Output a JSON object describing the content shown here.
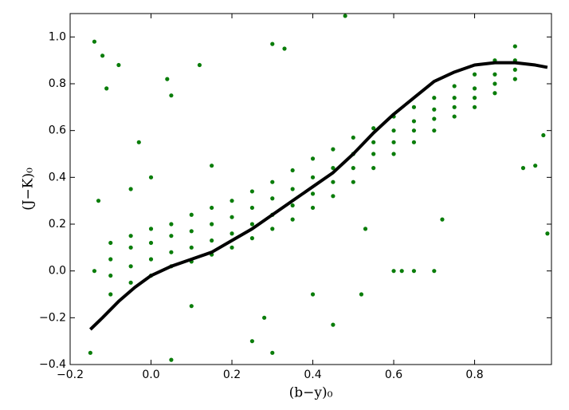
{
  "chart_data": {
    "type": "scatter",
    "xlabel": "(b−y)₀",
    "ylabel": "(J−K)₀",
    "xlim": [
      -0.2,
      0.99
    ],
    "ylim": [
      -0.4,
      1.1
    ],
    "xticks": [
      {
        "value": -0.2,
        "label": "−0.2"
      },
      {
        "value": 0,
        "label": "0.0"
      },
      {
        "value": 0.2,
        "label": "0.2"
      },
      {
        "value": 0.4,
        "label": "0.4"
      },
      {
        "value": 0.6,
        "label": "0.6"
      },
      {
        "value": 0.8,
        "label": "0.8"
      }
    ],
    "yticks": [
      {
        "value": -0.4,
        "label": "−0.4"
      },
      {
        "value": -0.2,
        "label": "−0.2"
      },
      {
        "value": 0,
        "label": "0.0"
      },
      {
        "value": 0.2,
        "label": "0.2"
      },
      {
        "value": 0.4,
        "label": "0.4"
      },
      {
        "value": 0.6,
        "label": "0.6"
      },
      {
        "value": 0.8,
        "label": "0.8"
      },
      {
        "value": 1,
        "label": "1.0"
      }
    ],
    "series": [
      {
        "color": "#0a7d0a",
        "x": [
          -0.1,
          -0.1,
          -0.1,
          -0.1,
          -0.05,
          -0.05,
          -0.05,
          -0.05,
          0,
          0,
          0,
          0,
          0.05,
          0.05,
          0.05,
          0.05,
          0.1,
          0.1,
          0.1,
          0.1,
          0.15,
          0.15,
          0.15,
          0.15,
          0.2,
          0.2,
          0.2,
          0.2,
          0.25,
          0.25,
          0.25,
          0.25,
          0.3,
          0.3,
          0.3,
          0.3,
          0.35,
          0.35,
          0.35,
          0.35,
          0.4,
          0.4,
          0.4,
          0.4,
          0.45,
          0.45,
          0.45,
          0.45,
          0.5,
          0.5,
          0.5,
          0.5,
          0.55,
          0.55,
          0.55,
          0.55,
          0.6,
          0.6,
          0.6,
          0.6,
          0.65,
          0.65,
          0.65,
          0.65,
          0.7,
          0.7,
          0.7,
          0.7,
          0.75,
          0.75,
          0.75,
          0.75,
          0.8,
          0.8,
          0.8,
          0.8,
          0.85,
          0.85,
          0.85,
          0.85,
          0.9,
          0.9,
          0.9,
          0.9,
          -0.14,
          -0.12,
          -0.11,
          -0.08,
          -0.03,
          0.04,
          0.05,
          0.12,
          0.3,
          0.33,
          0.48,
          0.7,
          0.65,
          0.62,
          0.6,
          0.95,
          0.92,
          0.98,
          0.97,
          0.53,
          0.72,
          0.25,
          0.3,
          0.28,
          0.05,
          -0.15,
          -0.14,
          0.1,
          0.45,
          0.4,
          0.52,
          -0.05,
          0,
          -0.13,
          0.15
        ],
        "y": [
          0.05,
          -0.02,
          -0.1,
          0.12,
          0.1,
          0.02,
          -0.05,
          0.15,
          0.12,
          0.05,
          -0.02,
          0.18,
          0.15,
          0.08,
          0.02,
          0.2,
          0.17,
          0.1,
          0.04,
          0.24,
          0.2,
          0.13,
          0.07,
          0.27,
          0.23,
          0.16,
          0.1,
          0.3,
          0.27,
          0.2,
          0.14,
          0.34,
          0.31,
          0.24,
          0.18,
          0.38,
          0.35,
          0.28,
          0.22,
          0.43,
          0.4,
          0.33,
          0.27,
          0.48,
          0.44,
          0.38,
          0.32,
          0.52,
          0.5,
          0.44,
          0.38,
          0.57,
          0.55,
          0.5,
          0.44,
          0.61,
          0.6,
          0.55,
          0.5,
          0.66,
          0.64,
          0.6,
          0.55,
          0.7,
          0.69,
          0.65,
          0.6,
          0.74,
          0.74,
          0.7,
          0.66,
          0.79,
          0.78,
          0.74,
          0.7,
          0.84,
          0.84,
          0.8,
          0.76,
          0.9,
          0.9,
          0.86,
          0.82,
          0.96,
          0.98,
          0.92,
          0.78,
          0.88,
          0.55,
          0.82,
          0.75,
          0.88,
          0.97,
          0.95,
          1.09,
          0,
          0,
          0,
          0,
          0.45,
          0.44,
          0.16,
          0.58,
          0.18,
          0.22,
          -0.3,
          -0.35,
          -0.2,
          -0.38,
          -0.35,
          0,
          -0.15,
          -0.23,
          -0.1,
          -0.1,
          0.35,
          0.4,
          0.3,
          0.45
        ]
      },
      {
        "type": "line",
        "color": "#000000",
        "x": [
          -0.15,
          -0.12,
          -0.08,
          -0.04,
          0,
          0.05,
          0.1,
          0.15,
          0.2,
          0.25,
          0.3,
          0.35,
          0.4,
          0.45,
          0.5,
          0.55,
          0.6,
          0.65,
          0.7,
          0.75,
          0.8,
          0.85,
          0.9,
          0.95,
          0.98
        ],
        "y": [
          -0.25,
          -0.2,
          -0.13,
          -0.07,
          -0.02,
          0.02,
          0.05,
          0.08,
          0.13,
          0.18,
          0.24,
          0.3,
          0.36,
          0.42,
          0.5,
          0.59,
          0.67,
          0.74,
          0.81,
          0.85,
          0.88,
          0.89,
          0.89,
          0.88,
          0.87
        ]
      }
    ]
  }
}
